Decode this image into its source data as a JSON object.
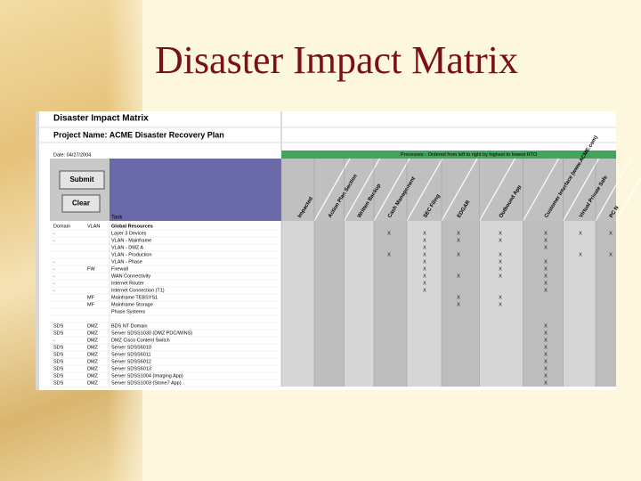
{
  "slide_title": "Disaster Impact Matrix",
  "sheet": {
    "title": "Disaster Impact Matrix",
    "project": "Project Name: ACME Disaster Recovery Plan",
    "date": "Date: 04/27/2004",
    "processes_banner": "Processes - Ordered from left to right by highest to lowest RTO",
    "buttons": [
      "Submit",
      "Clear"
    ],
    "task_header": "Task",
    "columns": [
      "Impacted",
      "Action Plan Section",
      "Written Backup",
      "Cash Management",
      "SEC Filing",
      "EDGAR",
      "Outbound App",
      "Customer Interface (www.ACME.com)",
      "Virtual Private Safe",
      "PC N"
    ],
    "rows": [
      {
        "domain": "Domain",
        "vlan": "VLAN",
        "task": "Global Resources",
        "cells": [
          null,
          null,
          null,
          null,
          null,
          null,
          null,
          null,
          null,
          null
        ]
      },
      {
        "domain": "-",
        "vlan": null,
        "task": "Layer 3 Devices",
        "cells": [
          null,
          null,
          null,
          "X",
          "X",
          "X",
          "X",
          "X",
          "X",
          "X"
        ]
      },
      {
        "domain": "-",
        "vlan": null,
        "task": "VLAN - Mainframe",
        "cells": [
          null,
          null,
          null,
          null,
          "X",
          "X",
          "X",
          "X",
          null,
          null
        ]
      },
      {
        "domain": null,
        "vlan": null,
        "task": "VLAN - DMZ A",
        "cells": [
          null,
          null,
          null,
          null,
          "X",
          null,
          null,
          "X",
          null,
          null
        ]
      },
      {
        "domain": null,
        "vlan": null,
        "task": "VLAN - Production",
        "cells": [
          null,
          null,
          null,
          "X",
          "X",
          "X",
          "X",
          null,
          "X",
          "X"
        ]
      },
      {
        "domain": "-",
        "vlan": null,
        "task": "VLAN - Phase",
        "cells": [
          null,
          null,
          null,
          null,
          "X",
          null,
          "X",
          "X",
          null,
          null
        ]
      },
      {
        "domain": "-",
        "vlan": "FW",
        "task": "Firewall",
        "cells": [
          null,
          null,
          null,
          null,
          "X",
          null,
          "X",
          "X",
          null,
          null
        ]
      },
      {
        "domain": "-",
        "vlan": null,
        "task": "WAN Connectivity",
        "cells": [
          null,
          null,
          null,
          null,
          "X",
          "X",
          "X",
          "X",
          null,
          null
        ]
      },
      {
        "domain": "-",
        "vlan": null,
        "task": "Internet Router",
        "cells": [
          null,
          null,
          null,
          null,
          "X",
          null,
          null,
          "X",
          null,
          null
        ]
      },
      {
        "domain": "-",
        "vlan": null,
        "task": "Internet Connection (T1)",
        "cells": [
          null,
          null,
          null,
          null,
          "X",
          null,
          null,
          "X",
          null,
          null
        ]
      },
      {
        "domain": null,
        "vlan": "MF",
        "task": "Mainframe TEBSYS1",
        "cells": [
          null,
          null,
          null,
          null,
          null,
          "X",
          "X",
          null,
          null,
          null
        ]
      },
      {
        "domain": null,
        "vlan": "MF",
        "task": "Mainframe Storage",
        "cells": [
          null,
          null,
          null,
          null,
          null,
          "X",
          "X",
          null,
          null,
          null
        ]
      },
      {
        "domain": null,
        "vlan": null,
        "task": "Phase Systems",
        "cells": [
          null,
          null,
          null,
          null,
          null,
          null,
          null,
          null,
          null,
          null
        ]
      },
      {
        "domain": null,
        "vlan": null,
        "task": null,
        "cells": [
          null,
          null,
          null,
          null,
          null,
          null,
          null,
          null,
          null,
          null
        ]
      },
      {
        "domain": "SDS",
        "vlan": "DMZ",
        "task": "BDS NT Domain",
        "cells": [
          null,
          null,
          null,
          null,
          null,
          null,
          null,
          "X",
          null,
          null
        ]
      },
      {
        "domain": "SDS",
        "vlan": "DMZ",
        "task": "Server SDSS1030 (DMZ PDC/WINS)",
        "cells": [
          null,
          null,
          null,
          null,
          null,
          null,
          null,
          "X",
          null,
          null
        ]
      },
      {
        "domain": "-",
        "vlan": "DMZ",
        "task": "DMZ Cisco Content Switch",
        "cells": [
          null,
          null,
          null,
          null,
          null,
          null,
          null,
          "X",
          null,
          null
        ]
      },
      {
        "domain": "SDS",
        "vlan": "DMZ",
        "task": "Server SDSS6010",
        "cells": [
          null,
          null,
          null,
          null,
          null,
          null,
          null,
          "X",
          null,
          null
        ]
      },
      {
        "domain": "SDS",
        "vlan": "DMZ",
        "task": "Server SDSS6011",
        "cells": [
          null,
          null,
          null,
          null,
          null,
          null,
          null,
          "X",
          null,
          null
        ]
      },
      {
        "domain": "SDS",
        "vlan": "DMZ",
        "task": "Server SDSS6012",
        "cells": [
          null,
          null,
          null,
          null,
          null,
          null,
          null,
          "X",
          null,
          null
        ]
      },
      {
        "domain": "SDS",
        "vlan": "DMZ",
        "task": "Server SDSS6013",
        "cells": [
          null,
          null,
          null,
          null,
          null,
          null,
          null,
          "X",
          null,
          null
        ]
      },
      {
        "domain": "SDS",
        "vlan": "DMZ",
        "task": "Server SDSS1004 (Imaging App)",
        "cells": [
          null,
          null,
          null,
          null,
          null,
          null,
          null,
          "X",
          null,
          null
        ]
      },
      {
        "domain": "SDS",
        "vlan": "DMZ",
        "task": "Server SDSS1003 (Stone7 App)",
        "cells": [
          null,
          null,
          null,
          null,
          null,
          null,
          null,
          "X",
          null,
          null
        ]
      }
    ]
  }
}
